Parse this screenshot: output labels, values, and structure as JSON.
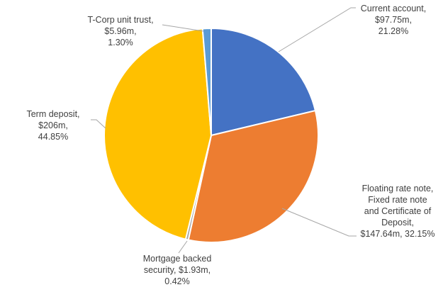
{
  "chart_data": {
    "type": "pie",
    "title": "",
    "slices": [
      {
        "name": "Current account",
        "value": 97.75,
        "value_label": "$97.75m",
        "percent_label": "21.28%",
        "color": "#4472C4"
      },
      {
        "name": "Floating rate note, Fixed rate note and Certificate of Deposit",
        "value": 147.64,
        "value_label": "$147.64m",
        "percent_label": "32.15%",
        "color": "#ED7D31"
      },
      {
        "name": "Mortgage backed security",
        "value": 1.93,
        "value_label": "$1.93m",
        "percent_label": "0.42%",
        "color": "#A5A5A5"
      },
      {
        "name": "Term deposit",
        "value": 206,
        "value_label": "$206m",
        "percent_label": "44.85%",
        "color": "#FFC000"
      },
      {
        "name": "T-Corp unit trust",
        "value": 5.96,
        "value_label": "$5.96m",
        "percent_label": "1.30%",
        "color": "#5B9BD5"
      }
    ]
  },
  "labels": {
    "current_account": [
      "Current account,",
      "$97.75m,",
      "21.28%"
    ],
    "floating": [
      "Floating rate note,",
      "Fixed rate note",
      "and Certificate of",
      "Deposit,",
      "$147.64m, 32.15%"
    ],
    "mortgage": [
      "Mortgage backed",
      "security, $1.93m,",
      "0.42%"
    ],
    "term_deposit": [
      "Term deposit,",
      "$206m,",
      "44.85%"
    ],
    "tcorp": [
      "T-Corp unit trust,",
      "$5.96m,",
      "1.30%"
    ]
  }
}
